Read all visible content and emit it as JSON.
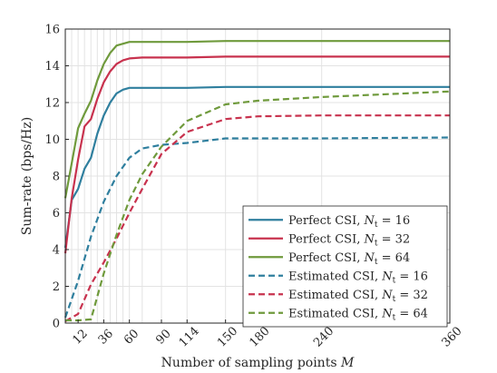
{
  "chart_data": {
    "type": "line",
    "xlabel": "Number of sampling points M",
    "ylabel": "Sum-rate (bps/Hz)",
    "xlim": [
      0,
      360
    ],
    "ylim": [
      0,
      16
    ],
    "xticks": [
      12,
      36,
      60,
      90,
      114,
      150,
      180,
      240,
      360
    ],
    "yticks": [
      0,
      2,
      4,
      6,
      8,
      10,
      12,
      14,
      16
    ],
    "grid": true,
    "legend_position": "bottom-right",
    "series": [
      {
        "name": "Perfect CSI, N_t = 16",
        "legend_main": "Perfect CSI, ",
        "legend_sub": "16",
        "color": "#2f7f9e",
        "dash": false,
        "x": [
          0,
          6,
          12,
          18,
          24,
          30,
          36,
          42,
          48,
          54,
          60,
          72,
          90,
          114,
          150,
          180,
          240,
          360
        ],
        "y": [
          4.1,
          6.7,
          7.3,
          8.4,
          9.0,
          10.3,
          11.3,
          12.0,
          12.5,
          12.7,
          12.8,
          12.8,
          12.8,
          12.8,
          12.85,
          12.85,
          12.85,
          12.85
        ]
      },
      {
        "name": "Perfect CSI, N_t = 32",
        "legend_main": "Perfect CSI, ",
        "legend_sub": "32",
        "color": "#c8324e",
        "dash": false,
        "x": [
          0,
          6,
          12,
          18,
          24,
          30,
          36,
          42,
          48,
          54,
          60,
          72,
          90,
          114,
          150,
          180,
          240,
          360
        ],
        "y": [
          3.8,
          6.8,
          8.9,
          10.7,
          11.1,
          12.2,
          13.1,
          13.7,
          14.1,
          14.3,
          14.4,
          14.45,
          14.45,
          14.45,
          14.5,
          14.5,
          14.5,
          14.5
        ]
      },
      {
        "name": "Perfect CSI, N_t = 64",
        "legend_main": "Perfect CSI, ",
        "legend_sub": "64",
        "color": "#6f9a3c",
        "dash": false,
        "x": [
          0,
          6,
          12,
          18,
          24,
          30,
          36,
          42,
          48,
          54,
          60,
          72,
          90,
          114,
          150,
          180,
          240,
          360
        ],
        "y": [
          6.8,
          8.7,
          10.6,
          11.4,
          12.1,
          13.2,
          14.1,
          14.7,
          15.1,
          15.2,
          15.3,
          15.3,
          15.3,
          15.3,
          15.35,
          15.35,
          15.35,
          15.35
        ]
      },
      {
        "name": "Estimated CSI, N_t = 16",
        "legend_main": "Estimated CSI, ",
        "legend_sub": "16",
        "color": "#2f7f9e",
        "dash": true,
        "x": [
          0,
          12,
          24,
          36,
          48,
          60,
          72,
          90,
          114,
          150,
          180,
          240,
          360
        ],
        "y": [
          0.3,
          2.3,
          4.7,
          6.6,
          8.0,
          9.0,
          9.5,
          9.7,
          9.8,
          10.05,
          10.05,
          10.05,
          10.1
        ]
      },
      {
        "name": "Estimated CSI, N_t = 32",
        "legend_main": "Estimated CSI, ",
        "legend_sub": "32",
        "color": "#c8324e",
        "dash": true,
        "x": [
          0,
          12,
          24,
          36,
          48,
          60,
          72,
          90,
          114,
          150,
          180,
          240,
          360
        ],
        "y": [
          0.1,
          0.5,
          2.1,
          3.3,
          4.6,
          6.0,
          7.3,
          9.2,
          10.4,
          11.1,
          11.25,
          11.3,
          11.3
        ]
      },
      {
        "name": "Estimated CSI, N_t = 64",
        "legend_main": "Estimated CSI, ",
        "legend_sub": "64",
        "color": "#6f9a3c",
        "dash": true,
        "x": [
          0,
          12,
          24,
          36,
          48,
          60,
          72,
          90,
          114,
          150,
          180,
          240,
          360
        ],
        "y": [
          0.15,
          0.15,
          0.2,
          2.7,
          4.8,
          6.7,
          8.1,
          9.6,
          11.0,
          11.9,
          12.1,
          12.3,
          12.6
        ]
      }
    ]
  }
}
